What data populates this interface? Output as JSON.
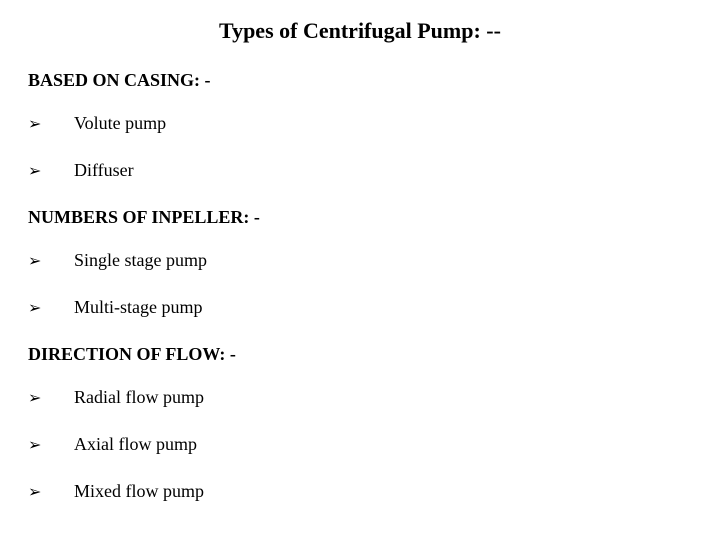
{
  "title": "Types of Centrifugal Pump: --",
  "sections": [
    {
      "heading": "BASED ON CASING: -",
      "items": [
        "Volute pump",
        "Diffuser"
      ]
    },
    {
      "heading": "NUMBERS OF INPELLER: -",
      "items": [
        "Single stage pump",
        "Multi-stage pump"
      ]
    },
    {
      "heading": "DIRECTION OF FLOW: -",
      "items": [
        "Radial flow pump",
        "Axial flow pump",
        "Mixed flow pump"
      ]
    }
  ],
  "bullet_glyph": "➢",
  "colors": {
    "background": "#ffffff",
    "text": "#000000"
  },
  "typography": {
    "title_fontsize": 22,
    "heading_fontsize": 18,
    "body_fontsize": 18,
    "font_family": "Times New Roman"
  }
}
